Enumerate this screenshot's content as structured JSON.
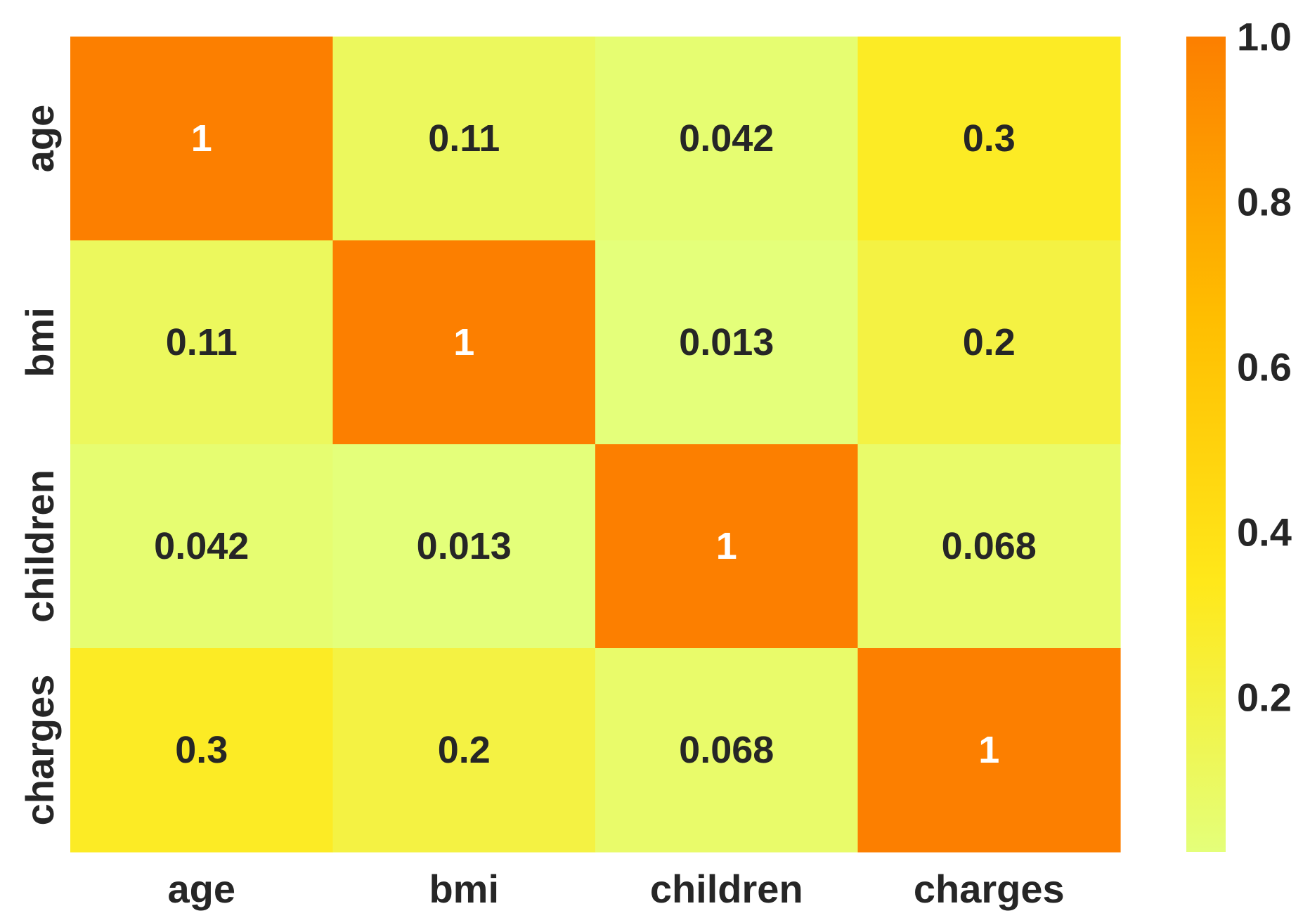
{
  "chart_data": {
    "type": "heatmap",
    "title": "",
    "xlabel": "",
    "ylabel": "",
    "x_categories": [
      "age",
      "bmi",
      "children",
      "charges"
    ],
    "y_categories": [
      "age",
      "bmi",
      "children",
      "charges"
    ],
    "values": [
      [
        1,
        0.11,
        0.042,
        0.3
      ],
      [
        0.11,
        1,
        0.013,
        0.2
      ],
      [
        0.042,
        0.013,
        1,
        0.068
      ],
      [
        0.3,
        0.2,
        0.068,
        1
      ]
    ],
    "annotations": [
      [
        "1",
        "0.11",
        "0.042",
        "0.3"
      ],
      [
        "0.11",
        "1",
        "0.013",
        "0.2"
      ],
      [
        "0.042",
        "0.013",
        "1",
        "0.068"
      ],
      [
        "0.3",
        "0.2",
        "0.068",
        "1"
      ]
    ],
    "colormap": "Wistia",
    "vmin": 0.013,
    "vmax": 1.0,
    "colorbar": {
      "ticks": [
        0.2,
        0.4,
        0.6,
        0.8,
        1.0
      ],
      "tick_labels": [
        "0.2",
        "0.4",
        "0.6",
        "0.8",
        "1.0"
      ],
      "placement": "right"
    },
    "colors": {
      "low": "#e4ff7a",
      "mid_low": "#ffe81a",
      "mid_high": "#ffbd00",
      "high": "#fc7f00",
      "annotation_dark": "#262626",
      "annotation_light": "#ffffff"
    }
  }
}
